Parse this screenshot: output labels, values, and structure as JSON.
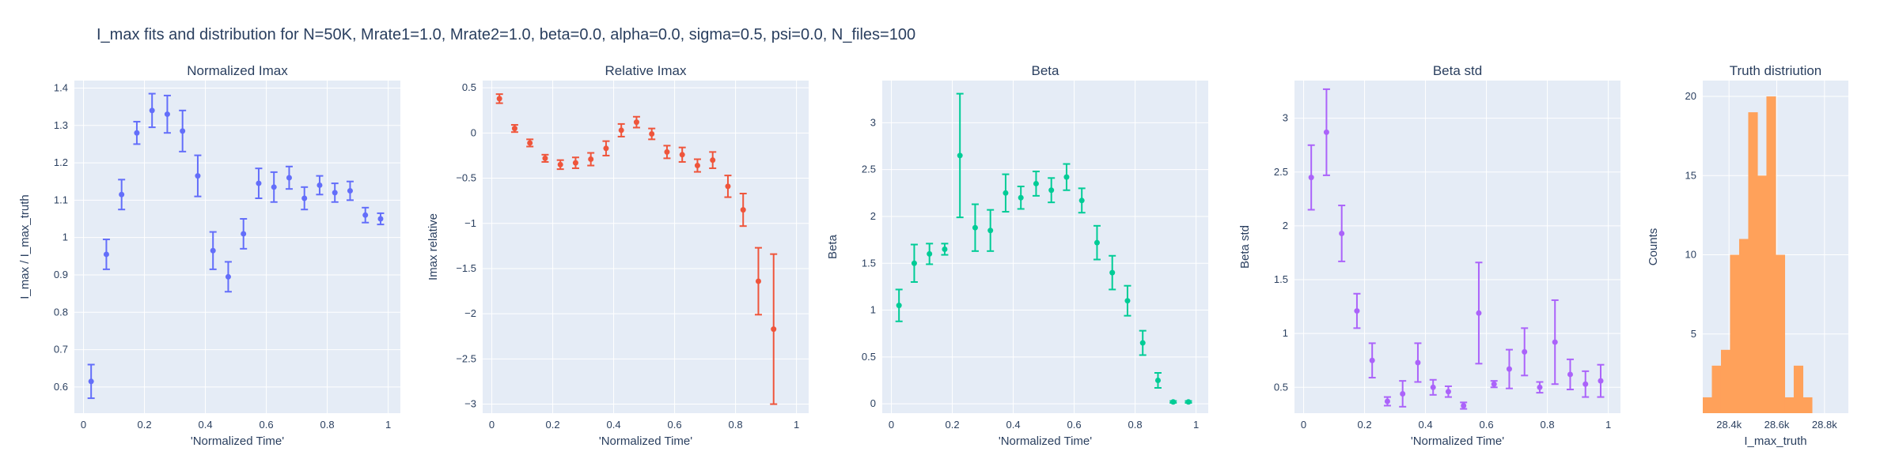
{
  "figure_title": "I_max fits and distribution for N=50K, Mrate1=1.0, Mrate2=1.0, beta=0.0, alpha=0.0, sigma=0.5,  psi=0.0, N_files=100",
  "chart_data": [
    {
      "type": "scatter",
      "title": "Normalized Imax",
      "xlabel": "'Normalized Time'",
      "ylabel": "I_max / I_max_truth",
      "color": "#636efa",
      "xlim": [
        -0.03,
        1.04
      ],
      "ylim": [
        0.53,
        1.42
      ],
      "xticks": [
        0,
        0.2,
        0.4,
        0.6,
        0.8,
        1
      ],
      "xtick_labels": [
        "0",
        "0.2",
        "0.4",
        "0.6",
        "0.8",
        "1"
      ],
      "yticks": [
        0.6,
        0.7,
        0.8,
        0.9,
        1.0,
        1.1,
        1.2,
        1.3,
        1.4
      ],
      "ytick_labels": [
        "0.6",
        "0.7",
        "0.8",
        "0.9",
        "1",
        "1.1",
        "1.2",
        "1.3",
        "1.4"
      ],
      "x": [
        0.025,
        0.075,
        0.125,
        0.175,
        0.225,
        0.275,
        0.325,
        0.375,
        0.425,
        0.475,
        0.525,
        0.575,
        0.625,
        0.675,
        0.725,
        0.775,
        0.825,
        0.875,
        0.925,
        0.975
      ],
      "y": [
        0.615,
        0.955,
        1.115,
        1.28,
        1.34,
        1.33,
        1.285,
        1.165,
        0.965,
        0.895,
        1.01,
        1.145,
        1.135,
        1.16,
        1.105,
        1.14,
        1.12,
        1.125,
        1.06,
        1.05
      ],
      "err": [
        0.045,
        0.04,
        0.04,
        0.03,
        0.045,
        0.05,
        0.055,
        0.055,
        0.05,
        0.04,
        0.04,
        0.04,
        0.04,
        0.03,
        0.03,
        0.025,
        0.025,
        0.025,
        0.02,
        0.015
      ]
    },
    {
      "type": "scatter",
      "title": "Relative Imax",
      "xlabel": "'Normalized Time'",
      "ylabel": "Imax relative",
      "color": "#ef553b",
      "xlim": [
        -0.03,
        1.04
      ],
      "ylim": [
        -3.1,
        0.58
      ],
      "xticks": [
        0,
        0.2,
        0.4,
        0.6,
        0.8,
        1
      ],
      "xtick_labels": [
        "0",
        "0.2",
        "0.4",
        "0.6",
        "0.8",
        "1"
      ],
      "yticks": [
        0.5,
        0,
        -0.5,
        -1,
        -1.5,
        -2,
        -2.5,
        -3
      ],
      "ytick_labels": [
        "0.5",
        "0",
        "−0.5",
        "−1",
        "−1.5",
        "−2",
        "−2.5",
        "−3"
      ],
      "x": [
        0.025,
        0.075,
        0.125,
        0.175,
        0.225,
        0.275,
        0.325,
        0.375,
        0.425,
        0.475,
        0.525,
        0.575,
        0.625,
        0.675,
        0.725,
        0.775,
        0.825,
        0.875,
        0.925
      ],
      "y": [
        0.38,
        0.05,
        -0.11,
        -0.28,
        -0.35,
        -0.33,
        -0.29,
        -0.17,
        0.03,
        0.12,
        -0.01,
        -0.21,
        -0.24,
        -0.36,
        -0.3,
        -0.59,
        -0.85,
        -1.64,
        -2.17
      ],
      "err": [
        0.05,
        0.04,
        0.04,
        0.04,
        0.05,
        0.06,
        0.07,
        0.08,
        0.07,
        0.06,
        0.06,
        0.07,
        0.08,
        0.07,
        0.09,
        0.12,
        0.18,
        0.37,
        0.83
      ]
    },
    {
      "type": "scatter",
      "title": "Beta",
      "xlabel": "'Normalized Time'",
      "ylabel": "Beta",
      "color": "#00cc96",
      "xlim": [
        -0.03,
        1.04
      ],
      "ylim": [
        -0.1,
        3.45
      ],
      "xticks": [
        0,
        0.2,
        0.4,
        0.6,
        0.8,
        1
      ],
      "xtick_labels": [
        "0",
        "0.2",
        "0.4",
        "0.6",
        "0.8",
        "1"
      ],
      "yticks": [
        0,
        0.5,
        1,
        1.5,
        2,
        2.5,
        3
      ],
      "ytick_labels": [
        "0",
        "0.5",
        "1",
        "1.5",
        "2",
        "2.5",
        "3"
      ],
      "x": [
        0.025,
        0.075,
        0.125,
        0.175,
        0.225,
        0.275,
        0.325,
        0.375,
        0.425,
        0.475,
        0.525,
        0.575,
        0.625,
        0.675,
        0.725,
        0.775,
        0.825,
        0.875,
        0.925,
        0.975
      ],
      "y": [
        1.05,
        1.5,
        1.6,
        1.65,
        2.65,
        1.88,
        1.85,
        2.25,
        2.2,
        2.35,
        2.28,
        2.42,
        2.17,
        1.72,
        1.4,
        1.1,
        0.65,
        0.25,
        0.02,
        0.02
      ],
      "err": [
        0.17,
        0.2,
        0.11,
        0.06,
        0.66,
        0.25,
        0.22,
        0.2,
        0.12,
        0.13,
        0.13,
        0.14,
        0.13,
        0.18,
        0.18,
        0.16,
        0.13,
        0.08,
        0.01,
        0.01
      ]
    },
    {
      "type": "scatter",
      "title": "Beta std",
      "xlabel": "'Normalized Time'",
      "ylabel": "Beta std",
      "color": "#ab63fa",
      "xlim": [
        -0.03,
        1.04
      ],
      "ylim": [
        0.26,
        3.35
      ],
      "xticks": [
        0,
        0.2,
        0.4,
        0.6,
        0.8,
        1
      ],
      "xtick_labels": [
        "0",
        "0.2",
        "0.4",
        "0.6",
        "0.8",
        "1"
      ],
      "yticks": [
        0.5,
        1,
        1.5,
        2,
        2.5,
        3
      ],
      "ytick_labels": [
        "0.5",
        "1",
        "1.5",
        "2",
        "2.5",
        "3"
      ],
      "x": [
        0.025,
        0.075,
        0.125,
        0.175,
        0.225,
        0.275,
        0.325,
        0.375,
        0.425,
        0.475,
        0.525,
        0.575,
        0.625,
        0.675,
        0.725,
        0.775,
        0.825,
        0.875,
        0.925,
        0.975
      ],
      "y": [
        2.45,
        2.87,
        1.93,
        1.21,
        0.75,
        0.37,
        0.44,
        0.73,
        0.5,
        0.46,
        0.33,
        1.19,
        0.53,
        0.67,
        0.83,
        0.5,
        0.92,
        0.62,
        0.53,
        0.56
      ],
      "err": [
        0.3,
        0.4,
        0.26,
        0.16,
        0.16,
        0.04,
        0.12,
        0.18,
        0.07,
        0.05,
        0.03,
        0.47,
        0.03,
        0.18,
        0.22,
        0.05,
        0.39,
        0.14,
        0.12,
        0.15
      ]
    },
    {
      "type": "bar",
      "title": "Truth distriution",
      "xlabel": "I_max_truth",
      "ylabel": "Counts",
      "color": "#ffa15a",
      "xlim": [
        28.29,
        28.9
      ],
      "ylim": [
        0,
        21
      ],
      "xticks": [
        28.4,
        28.6,
        28.8
      ],
      "xtick_labels": [
        "28.4k",
        "28.6k",
        "28.8k"
      ],
      "yticks": [
        5,
        10,
        15,
        20
      ],
      "ytick_labels": [
        "5",
        "10",
        "15",
        "20"
      ],
      "bin_start": 28.29,
      "bin_width": 0.0381,
      "counts": [
        1,
        3,
        4,
        10,
        11,
        19,
        15,
        20,
        10,
        1,
        3,
        1
      ]
    }
  ]
}
